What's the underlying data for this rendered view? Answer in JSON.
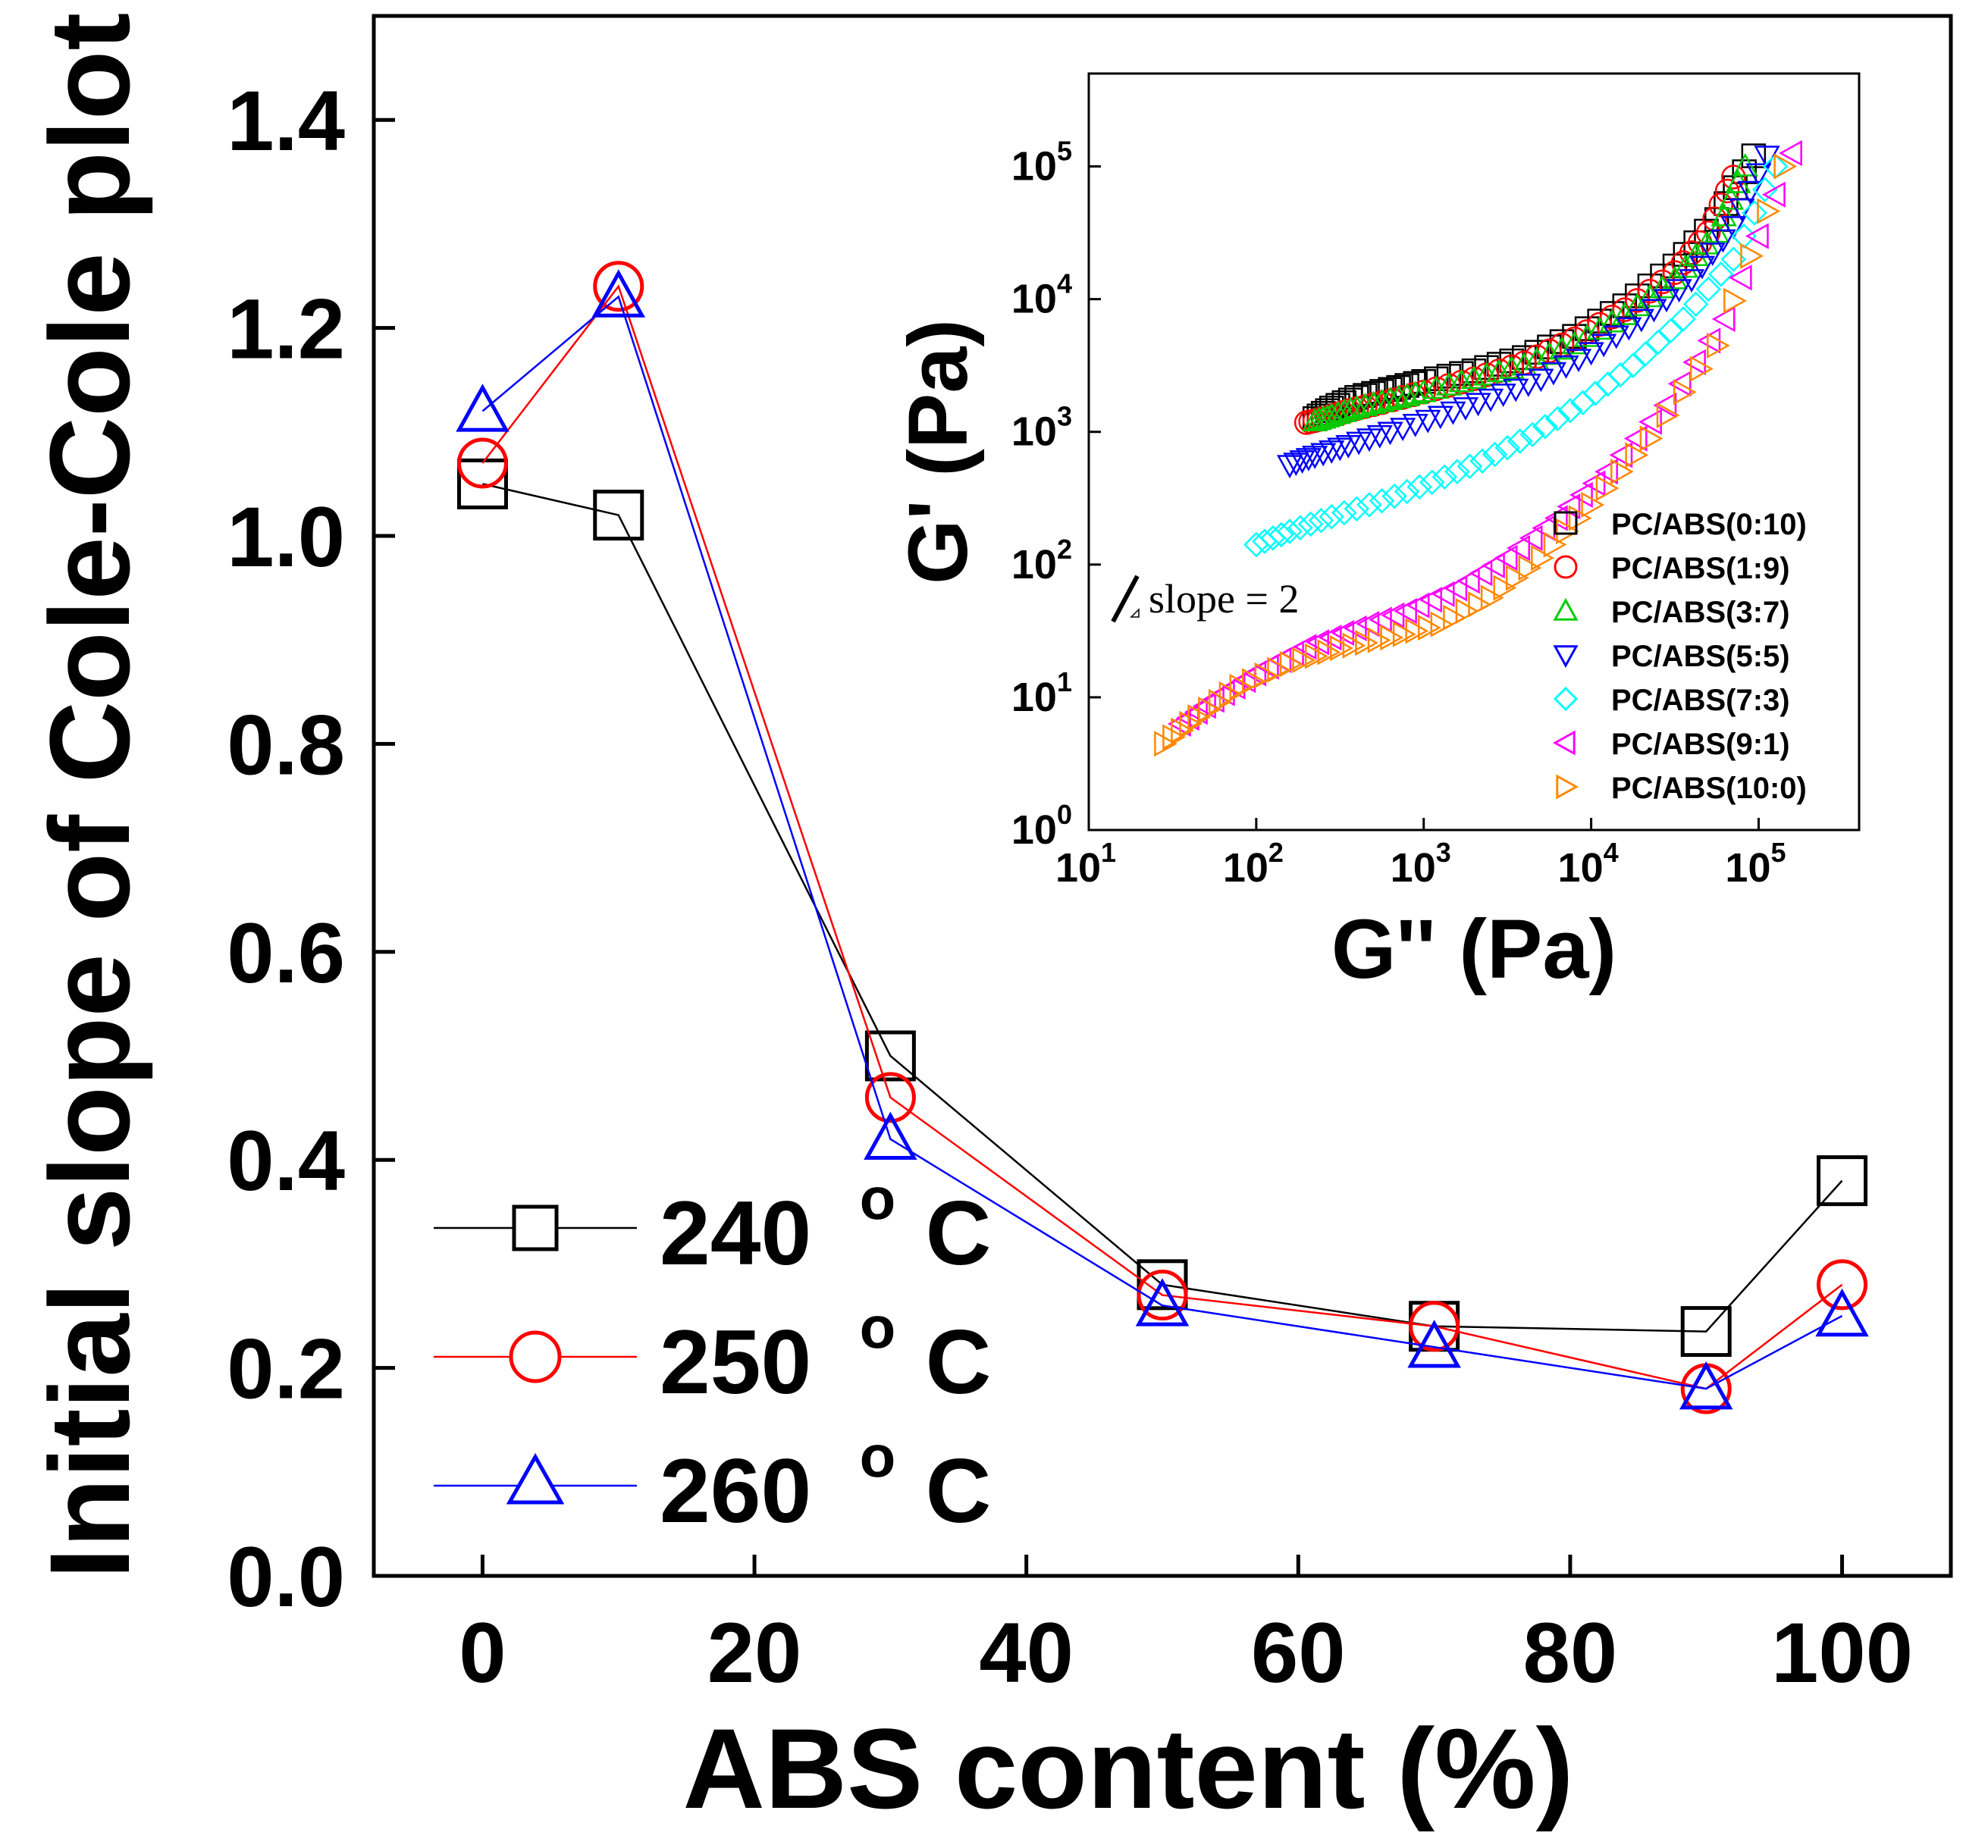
{
  "chart_data": [
    {
      "type": "line",
      "title": "",
      "xlabel": "ABS content (%)",
      "ylabel": "Initial slope of Cole-Cole plot",
      "xlim": [
        -8,
        108
      ],
      "ylim": [
        0.0,
        1.5
      ],
      "xticks": [
        0,
        20,
        40,
        60,
        80,
        100
      ],
      "yticks": [
        0.0,
        0.2,
        0.4,
        0.6,
        0.8,
        1.0,
        1.2,
        1.4
      ],
      "xtick_labels": [
        "0",
        "20",
        "40",
        "60",
        "80",
        "100"
      ],
      "ytick_labels": [
        "0.0",
        "0.2",
        "0.4",
        "0.6",
        "0.8",
        "1.0",
        "1.2",
        "1.4"
      ],
      "grid": false,
      "legend_position": "bottom-left",
      "x": [
        0,
        10,
        30,
        50,
        70,
        90,
        100
      ],
      "series": [
        {
          "name": "240 °C",
          "label_main": "240",
          "label_deg": "o",
          "label_unit": "C",
          "marker": "square",
          "color": "#000000",
          "values": [
            1.05,
            1.02,
            0.5,
            0.28,
            0.24,
            0.235,
            0.38
          ]
        },
        {
          "name": "250 °C",
          "label_main": "250",
          "label_deg": "o",
          "label_unit": "C",
          "marker": "circle",
          "color": "#ff0000",
          "values": [
            1.07,
            1.24,
            0.46,
            0.27,
            0.24,
            0.18,
            0.28
          ]
        },
        {
          "name": "260 °C",
          "label_main": "260",
          "label_deg": "o",
          "label_unit": "C",
          "marker": "triangle-up",
          "color": "#0000ff",
          "values": [
            1.12,
            1.23,
            0.42,
            0.26,
            0.22,
            0.18,
            0.25
          ]
        }
      ]
    },
    {
      "type": "scatter",
      "title": "",
      "xlabel": "G'' (Pa)",
      "ylabel": "G' (Pa)",
      "xscale": "log",
      "yscale": "log",
      "xlim_log10": [
        1,
        5.6
      ],
      "ylim_log10": [
        0,
        5.7
      ],
      "xtick_exponents": [
        "1",
        "2",
        "3",
        "4",
        "5"
      ],
      "ytick_exponents": [
        "0",
        "1",
        "2",
        "3",
        "4",
        "5"
      ],
      "tick_base": "10",
      "annotation": "slope = 2",
      "legend_position": "bottom-right",
      "series": [
        {
          "name": "PC/ABS(0:10)",
          "marker": "square",
          "color": "#000000",
          "x_log10": [
            2.35,
            2.45,
            2.6,
            2.8,
            3.0,
            3.3,
            3.6,
            3.9,
            4.2,
            4.5,
            4.75,
            4.97
          ],
          "y_log10": [
            3.1,
            3.18,
            3.26,
            3.32,
            3.38,
            3.46,
            3.56,
            3.72,
            3.95,
            4.25,
            4.6,
            5.08
          ]
        },
        {
          "name": "PC/ABS(1:9)",
          "marker": "circle",
          "color": "#ff0000",
          "x_log10": [
            2.3,
            2.4,
            2.55,
            2.75,
            3.0,
            3.3,
            3.6,
            3.9,
            4.2,
            4.5,
            4.7,
            4.85
          ],
          "y_log10": [
            3.07,
            3.1,
            3.16,
            3.22,
            3.3,
            3.4,
            3.52,
            3.7,
            3.92,
            4.2,
            4.5,
            4.92
          ]
        },
        {
          "name": "PC/ABS(3:7)",
          "marker": "triangle-up",
          "color": "#00cc00",
          "x_log10": [
            2.35,
            2.45,
            2.6,
            2.8,
            3.0,
            3.3,
            3.6,
            3.9,
            4.2,
            4.5,
            4.75,
            4.92
          ],
          "y_log10": [
            3.08,
            3.12,
            3.18,
            3.24,
            3.3,
            3.4,
            3.5,
            3.66,
            3.88,
            4.15,
            4.5,
            5.0
          ]
        },
        {
          "name": "PC/ABS(5:5)",
          "marker": "triangle-down",
          "color": "#0000ff",
          "x_log10": [
            2.2,
            2.35,
            2.55,
            2.8,
            3.1,
            3.4,
            3.7,
            4.0,
            4.3,
            4.6,
            4.85,
            5.05
          ],
          "y_log10": [
            2.75,
            2.82,
            2.9,
            3.0,
            3.12,
            3.25,
            3.4,
            3.6,
            3.85,
            4.15,
            4.55,
            5.08
          ]
        },
        {
          "name": "PC/ABS(7:3)",
          "marker": "diamond",
          "color": "#00ffff",
          "x_log10": [
            2.0,
            2.2,
            2.45,
            2.75,
            3.05,
            3.35,
            3.65,
            3.95,
            4.25,
            4.55,
            4.85,
            5.1
          ],
          "y_log10": [
            2.15,
            2.25,
            2.36,
            2.48,
            2.62,
            2.78,
            2.98,
            3.22,
            3.5,
            3.85,
            4.3,
            5.0
          ]
        },
        {
          "name": "PC/ABS(9:1)",
          "marker": "triangle-left",
          "color": "#ff00ff",
          "x_log10": [
            1.55,
            1.75,
            2.0,
            2.3,
            2.6,
            2.9,
            3.2,
            3.5,
            3.8,
            4.1,
            4.45,
            4.8,
            5.2
          ],
          "y_log10": [
            0.8,
            0.98,
            1.18,
            1.38,
            1.52,
            1.65,
            1.82,
            2.05,
            2.35,
            2.7,
            3.2,
            3.85,
            5.1
          ]
        },
        {
          "name": "PC/ABS(10:0)",
          "marker": "triangle-right",
          "color": "#ff8800",
          "x_log10": [
            1.45,
            1.65,
            1.9,
            2.2,
            2.5,
            2.8,
            3.1,
            3.4,
            3.7,
            4.0,
            4.35,
            4.75,
            5.15
          ],
          "y_log10": [
            0.65,
            0.85,
            1.08,
            1.25,
            1.37,
            1.45,
            1.55,
            1.75,
            2.05,
            2.45,
            2.95,
            3.65,
            5.0
          ]
        }
      ]
    }
  ]
}
